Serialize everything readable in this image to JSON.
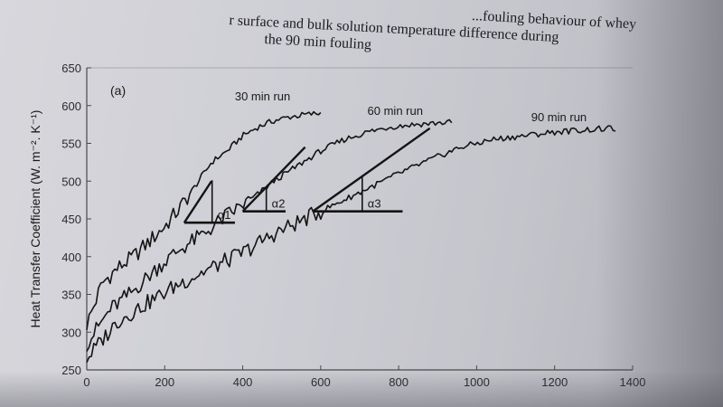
{
  "caption": {
    "line1": "r surface and bulk solution temperature difference during",
    "line1_prefix": "...fouling behaviour of whey",
    "line2": "the 90 min fouling"
  },
  "chart_data": {
    "type": "line",
    "panel_label": "(a)",
    "xlabel": "",
    "ylabel": "Heat Transfer Coefficient (W. m⁻². K⁻¹)",
    "xlim": [
      0,
      1400
    ],
    "ylim": [
      250,
      650
    ],
    "xticks": [
      0,
      200,
      400,
      600,
      800,
      1000,
      1200,
      1400
    ],
    "yticks": [
      250,
      300,
      350,
      400,
      450,
      500,
      550,
      600,
      650
    ],
    "grid": false,
    "series": [
      {
        "name": "30 min run",
        "x": [
          0,
          40,
          80,
          120,
          160,
          200,
          240,
          280,
          320,
          360,
          400,
          440,
          480,
          520,
          560,
          600
        ],
        "y": [
          310,
          365,
          385,
          400,
          420,
          440,
          465,
          495,
          525,
          540,
          560,
          572,
          580,
          585,
          588,
          590
        ]
      },
      {
        "name": "60 min run",
        "x": [
          0,
          60,
          120,
          180,
          240,
          300,
          360,
          420,
          480,
          540,
          600,
          660,
          720,
          780,
          840,
          900,
          940
        ],
        "y": [
          285,
          330,
          355,
          385,
          410,
          430,
          455,
          475,
          500,
          520,
          540,
          555,
          565,
          572,
          575,
          577,
          578
        ]
      },
      {
        "name": "90 min run",
        "x": [
          0,
          80,
          160,
          240,
          320,
          400,
          480,
          560,
          640,
          720,
          800,
          880,
          960,
          1040,
          1120,
          1200,
          1280,
          1360
        ],
        "y": [
          265,
          315,
          340,
          365,
          385,
          405,
          430,
          450,
          470,
          490,
          510,
          528,
          545,
          555,
          560,
          565,
          568,
          570
        ]
      }
    ],
    "tangents": [
      {
        "label": "α1",
        "x0": 250,
        "y0": 445,
        "x1": 320,
        "y1": 500,
        "baseline_x_end": 380
      },
      {
        "label": "α2",
        "x0": 400,
        "y0": 460,
        "x1": 560,
        "y1": 545,
        "baseline_x_end": 510
      },
      {
        "label": "α3",
        "x0": 580,
        "y0": 460,
        "x1": 880,
        "y1": 570,
        "baseline_x_end": 810
      }
    ]
  },
  "colors": {
    "line": "#141414",
    "axis": "#4a4a4a"
  }
}
